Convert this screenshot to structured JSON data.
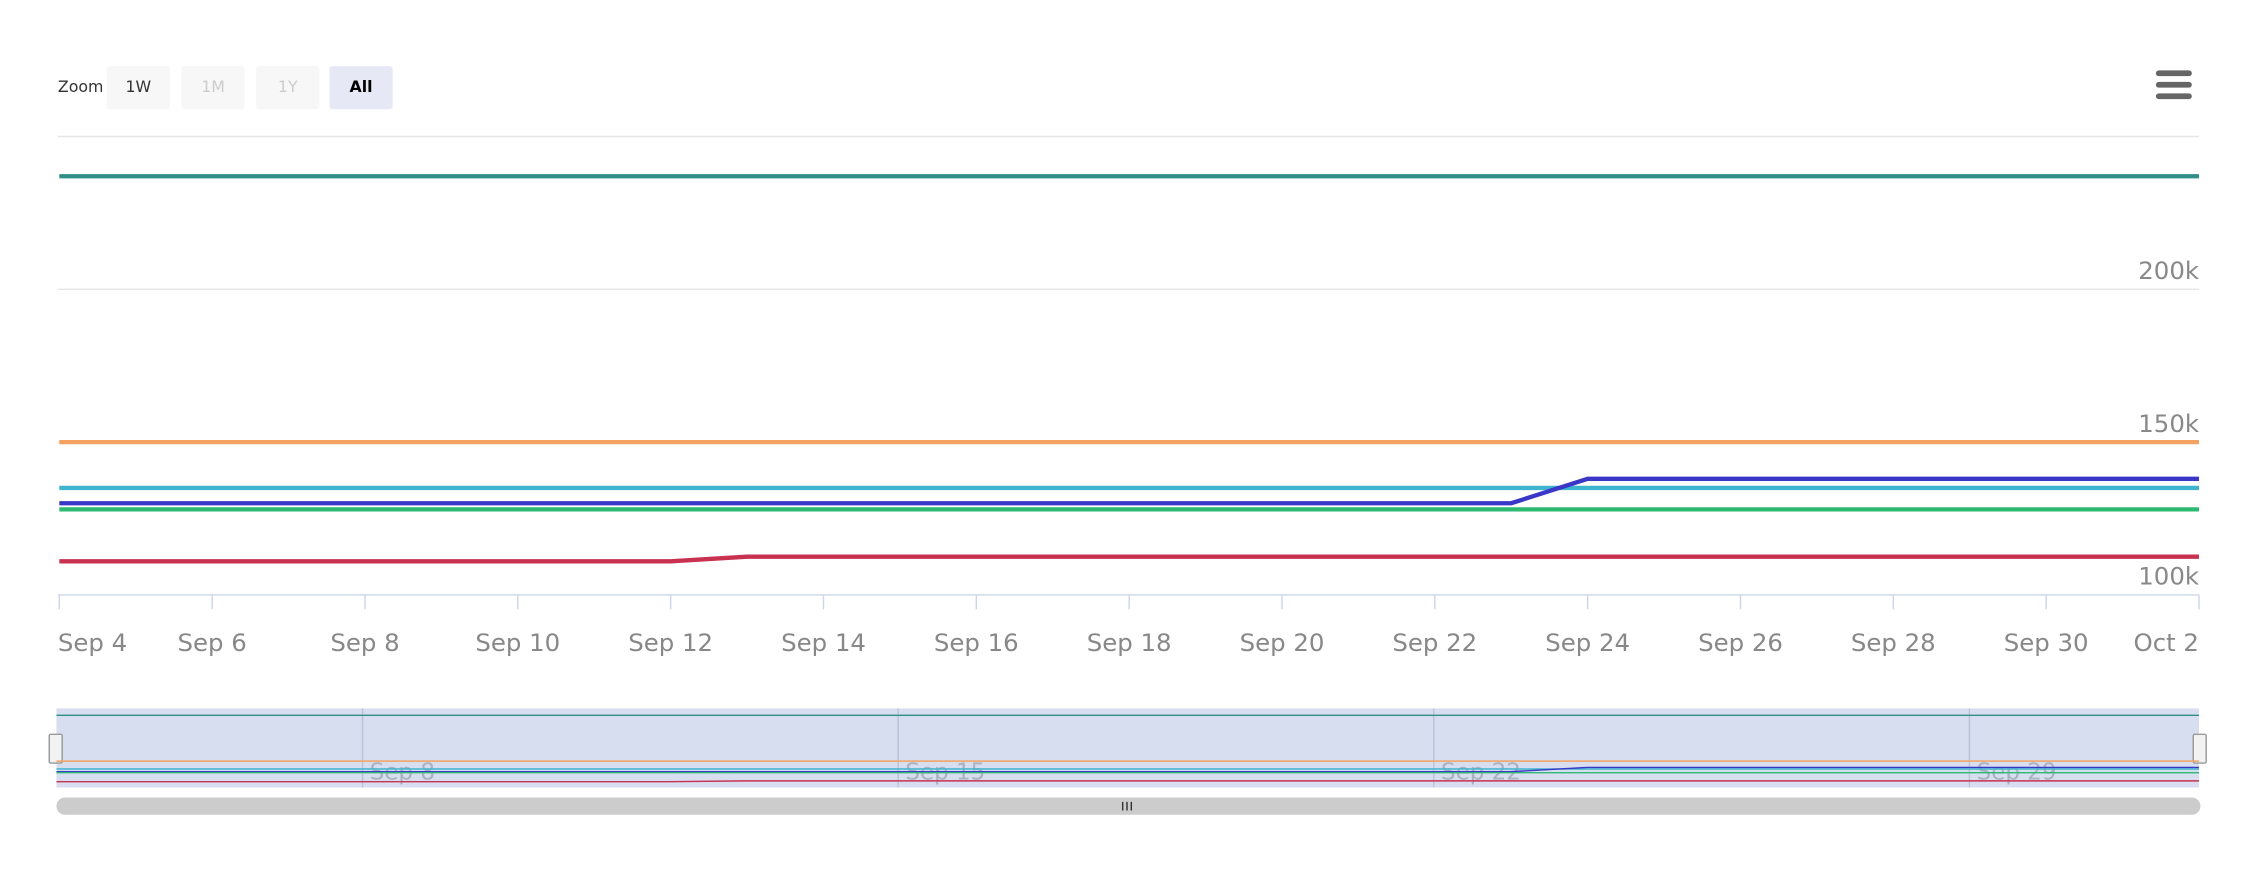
{
  "range_selector": {
    "label": "Zoom",
    "buttons": [
      "1W",
      "1M",
      "1Y",
      "All"
    ]
  },
  "chart_data": {
    "type": "line",
    "categories": [
      "Sep 4",
      null,
      "Sep 6",
      null,
      "Sep 8",
      null,
      "Sep 10",
      null,
      "Sep 12",
      null,
      "Sep 14",
      null,
      "Sep 16",
      null,
      "Sep 18",
      null,
      "Sep 20",
      null,
      "Sep 22",
      null,
      "Sep 24",
      null,
      "Sep 26",
      null,
      "Sep 28",
      null,
      "Sep 30",
      null,
      "Oct 2"
    ],
    "ylim": [
      100000,
      250000
    ],
    "yticks": [
      {
        "value": 100000,
        "label": "100k"
      },
      {
        "value": 150000,
        "label": "150k"
      },
      {
        "value": 200000,
        "label": "200k"
      }
    ],
    "grid": true,
    "series": [
      {
        "color": "#2f8f87",
        "values": [
          237000,
          237000,
          237000,
          237000,
          237000,
          237000,
          237000,
          237000,
          237000,
          237000,
          237000,
          237000,
          237000,
          237000,
          237000,
          237000,
          237000,
          237000,
          237000,
          237000,
          237000,
          237000,
          237000,
          237000,
          237000,
          237000,
          237000,
          237000,
          237000
        ]
      },
      {
        "color": "#f4a261",
        "values": [
          150000,
          150000,
          150000,
          150000,
          150000,
          150000,
          150000,
          150000,
          150000,
          150000,
          150000,
          150000,
          150000,
          150000,
          150000,
          150000,
          150000,
          150000,
          150000,
          150000,
          150000,
          150000,
          150000,
          150000,
          150000,
          150000,
          150000,
          150000,
          150000
        ]
      },
      {
        "color": "#3fb4cf",
        "values": [
          135000,
          135000,
          135000,
          135000,
          135000,
          135000,
          135000,
          135000,
          135000,
          135000,
          135000,
          135000,
          135000,
          135000,
          135000,
          135000,
          135000,
          135000,
          135000,
          135000,
          135000,
          135000,
          135000,
          135000,
          135000,
          135000,
          135000,
          135000,
          135000
        ]
      },
      {
        "color": "#3a36c8",
        "values": [
          130000,
          130000,
          130000,
          130000,
          130000,
          130000,
          130000,
          130000,
          130000,
          130000,
          130000,
          130000,
          130000,
          130000,
          130000,
          130000,
          130000,
          130000,
          130000,
          130000,
          138000,
          138000,
          138000,
          138000,
          138000,
          138000,
          138000,
          138000,
          138000
        ]
      },
      {
        "color": "#2eb872",
        "values": [
          128000,
          128000,
          128000,
          128000,
          128000,
          128000,
          128000,
          128000,
          128000,
          128000,
          128000,
          128000,
          128000,
          128000,
          128000,
          128000,
          128000,
          128000,
          128000,
          128000,
          128000,
          128000,
          128000,
          128000,
          128000,
          128000,
          128000,
          128000,
          128000
        ]
      },
      {
        "color": "#c83250",
        "values": [
          111000,
          111000,
          111000,
          111000,
          111000,
          111000,
          111000,
          111000,
          111000,
          112500,
          112500,
          112500,
          112500,
          112500,
          112500,
          112500,
          112500,
          112500,
          112500,
          112500,
          112500,
          112500,
          112500,
          112500,
          112500,
          112500,
          112500,
          112500,
          112500
        ]
      }
    ],
    "navigator": {
      "xticks": [
        {
          "value": 4,
          "label": "Sep 8"
        },
        {
          "value": 11,
          "label": "Sep 15"
        },
        {
          "value": 18,
          "label": "Sep 22"
        },
        {
          "value": 25,
          "label": "Sep 29"
        }
      ]
    }
  }
}
